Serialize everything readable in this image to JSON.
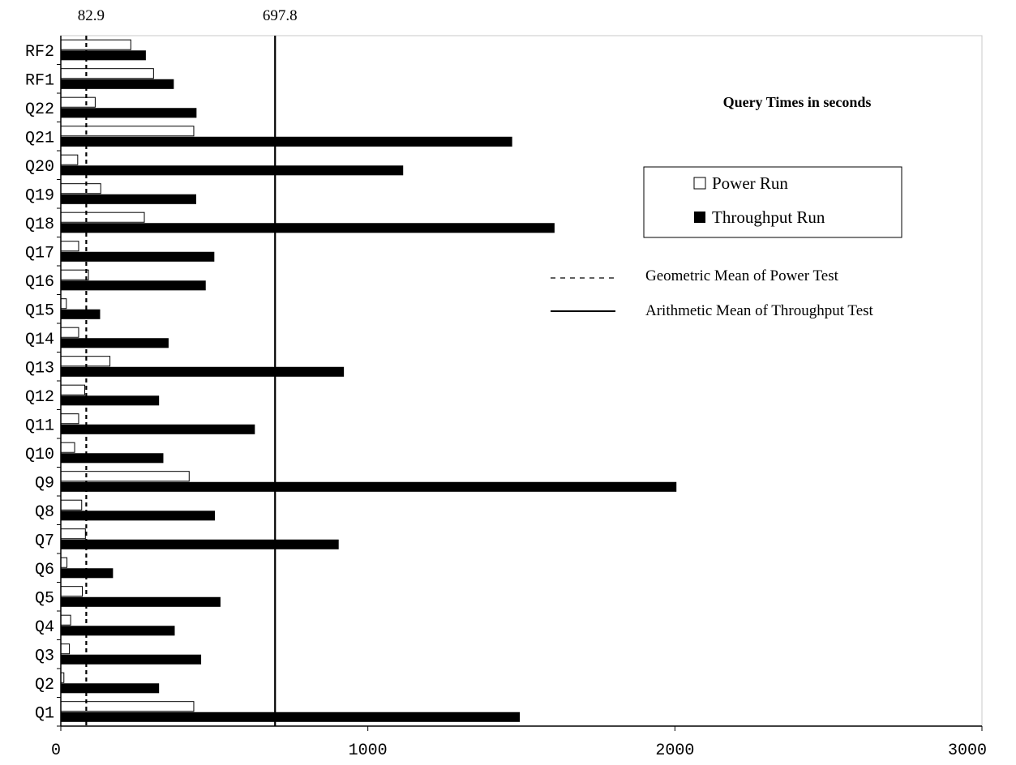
{
  "chart_data": {
    "type": "bar",
    "orientation": "horizontal",
    "title": "Query Times in seconds",
    "xlabel": "",
    "ylabel": "",
    "xlim": [
      0,
      3000
    ],
    "x_ticks": [
      "0",
      "1000",
      "2000",
      "3000"
    ],
    "categories": [
      "Q1",
      "Q2",
      "Q3",
      "Q4",
      "Q5",
      "Q6",
      "Q7",
      "Q8",
      "Q9",
      "Q10",
      "Q11",
      "Q12",
      "Q13",
      "Q14",
      "Q15",
      "Q16",
      "Q17",
      "Q18",
      "Q19",
      "Q20",
      "Q21",
      "Q22",
      "RF1",
      "RF2"
    ],
    "series": [
      {
        "name": "Power Run",
        "color": "#ffffff",
        "values": [
          433,
          10,
          28,
          32,
          70,
          20,
          80,
          68,
          418,
          45,
          58,
          78,
          160,
          58,
          18,
          90,
          58,
          272,
          130,
          55,
          433,
          112,
          302,
          228
        ]
      },
      {
        "name": "Throughput Run",
        "color": "#000000",
        "values": [
          1495,
          320,
          457,
          371,
          520,
          170,
          905,
          502,
          2005,
          334,
          632,
          320,
          922,
          351,
          128,
          472,
          500,
          1608,
          441,
          1115,
          1470,
          442,
          368,
          277
        ]
      }
    ],
    "reference_lines": [
      {
        "name": "Geometric Mean of Power Test",
        "value": 82.9,
        "label": "82.9",
        "style": "dashed"
      },
      {
        "name": "Arithmetic Mean of Throughput Test",
        "value": 697.8,
        "label": "697.8",
        "style": "solid"
      }
    ],
    "legend_placement": "right",
    "grid": false
  }
}
